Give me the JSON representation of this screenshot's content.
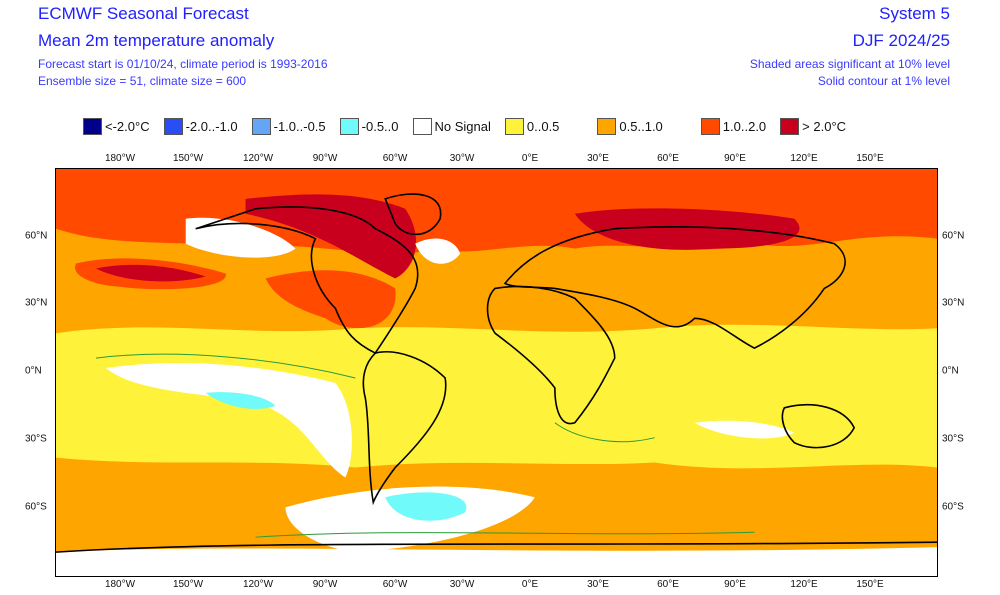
{
  "header": {
    "title": "ECMWF Seasonal Forecast",
    "subtitle": "Mean 2m temperature anomaly",
    "info1": "Forecast start is 01/10/24, climate period is 1993-2016",
    "info2": "Ensemble size = 51, climate size = 600",
    "system": "System 5",
    "season": "DJF 2024/25",
    "note1": "Shaded areas significant at 10% level",
    "note2": "Solid contour at 1% level"
  },
  "legend": [
    {
      "label": "<-2.0°C",
      "color": "#00008b"
    },
    {
      "label": "-2.0..-1.0",
      "color": "#2a4ef5"
    },
    {
      "label": "-1.0..-0.5",
      "color": "#64a6f5"
    },
    {
      "label": "-0.5..0",
      "color": "#70fafa"
    },
    {
      "label": "No Signal",
      "color": "#ffffff"
    },
    {
      "label": "0..0.5",
      "color": "#fff23a"
    },
    {
      "label": "0.5..1.0",
      "color": "#ffa500"
    },
    {
      "label": "1.0..2.0",
      "color": "#ff4a00"
    },
    {
      "label": "> 2.0°C",
      "color": "#c8001e"
    }
  ],
  "axes": {
    "lon_labels": [
      "180°W",
      "150°W",
      "120°W",
      "90°W",
      "60°W",
      "30°W",
      "0°E",
      "30°E",
      "60°E",
      "90°E",
      "120°E",
      "150°E"
    ],
    "lat_labels": [
      "60°N",
      "30°N",
      "0°N",
      "30°S",
      "60°S"
    ]
  }
}
